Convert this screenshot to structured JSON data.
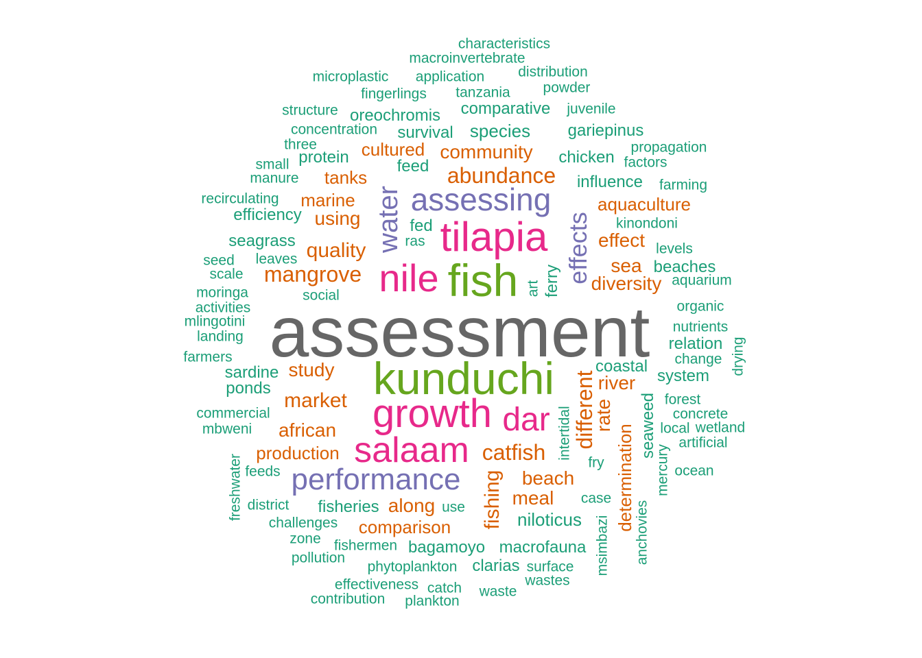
{
  "colors": {
    "teal": "#1b9e77",
    "orange": "#d95f02",
    "purple": "#7570b3",
    "magenta": "#e7298a",
    "green": "#66a61e",
    "gray": "#666666"
  },
  "words": [
    {
      "text": "assessment",
      "color": "#666666"
    },
    {
      "text": "kunduchi",
      "color": "#66a61e"
    },
    {
      "text": "fish",
      "color": "#66a61e"
    },
    {
      "text": "tilapia",
      "color": "#e7298a"
    },
    {
      "text": "nile",
      "color": "#e7298a"
    },
    {
      "text": "growth",
      "color": "#e7298a"
    },
    {
      "text": "salaam",
      "color": "#e7298a"
    },
    {
      "text": "dar",
      "color": "#e7298a"
    },
    {
      "text": "assessing",
      "color": "#7570b3"
    },
    {
      "text": "performance",
      "color": "#7570b3"
    },
    {
      "text": "water",
      "color": "#7570b3"
    },
    {
      "text": "effects",
      "color": "#7570b3"
    },
    {
      "text": "abundance",
      "color": "#d95f02"
    },
    {
      "text": "mangrove",
      "color": "#d95f02"
    },
    {
      "text": "quality",
      "color": "#d95f02"
    },
    {
      "text": "catfish",
      "color": "#d95f02"
    },
    {
      "text": "market",
      "color": "#d95f02"
    },
    {
      "text": "african",
      "color": "#d95f02"
    },
    {
      "text": "beach",
      "color": "#d95f02"
    },
    {
      "text": "community",
      "color": "#d95f02"
    },
    {
      "text": "cultured",
      "color": "#d95f02"
    },
    {
      "text": "using",
      "color": "#d95f02"
    },
    {
      "text": "marine",
      "color": "#d95f02"
    },
    {
      "text": "tanks",
      "color": "#d95f02"
    },
    {
      "text": "aquaculture",
      "color": "#d95f02"
    },
    {
      "text": "effect",
      "color": "#d95f02"
    },
    {
      "text": "sea",
      "color": "#d95f02"
    },
    {
      "text": "diversity",
      "color": "#d95f02"
    },
    {
      "text": "study",
      "color": "#d95f02"
    },
    {
      "text": "river",
      "color": "#d95f02"
    },
    {
      "text": "production",
      "color": "#d95f02"
    },
    {
      "text": "along",
      "color": "#d95f02"
    },
    {
      "text": "meal",
      "color": "#d95f02"
    },
    {
      "text": "comparison",
      "color": "#d95f02"
    },
    {
      "text": "different",
      "color": "#d95f02"
    },
    {
      "text": "rate",
      "color": "#d95f02"
    },
    {
      "text": "fishing",
      "color": "#d95f02"
    },
    {
      "text": "determination",
      "color": "#d95f02"
    },
    {
      "text": "characteristics",
      "color": "#1b9e77"
    },
    {
      "text": "macroinvertebrate",
      "color": "#1b9e77"
    },
    {
      "text": "microplastic",
      "color": "#1b9e77"
    },
    {
      "text": "application",
      "color": "#1b9e77"
    },
    {
      "text": "distribution",
      "color": "#1b9e77"
    },
    {
      "text": "fingerlings",
      "color": "#1b9e77"
    },
    {
      "text": "tanzania",
      "color": "#1b9e77"
    },
    {
      "text": "powder",
      "color": "#1b9e77"
    },
    {
      "text": "structure",
      "color": "#1b9e77"
    },
    {
      "text": "oreochromis",
      "color": "#1b9e77"
    },
    {
      "text": "comparative",
      "color": "#1b9e77"
    },
    {
      "text": "juvenile",
      "color": "#1b9e77"
    },
    {
      "text": "concentration",
      "color": "#1b9e77"
    },
    {
      "text": "survival",
      "color": "#1b9e77"
    },
    {
      "text": "species",
      "color": "#1b9e77"
    },
    {
      "text": "gariepinus",
      "color": "#1b9e77"
    },
    {
      "text": "three",
      "color": "#1b9e77"
    },
    {
      "text": "propagation",
      "color": "#1b9e77"
    },
    {
      "text": "protein",
      "color": "#1b9e77"
    },
    {
      "text": "chicken",
      "color": "#1b9e77"
    },
    {
      "text": "small",
      "color": "#1b9e77"
    },
    {
      "text": "feed",
      "color": "#1b9e77"
    },
    {
      "text": "factors",
      "color": "#1b9e77"
    },
    {
      "text": "manure",
      "color": "#1b9e77"
    },
    {
      "text": "influence",
      "color": "#1b9e77"
    },
    {
      "text": "farming",
      "color": "#1b9e77"
    },
    {
      "text": "recirculating",
      "color": "#1b9e77"
    },
    {
      "text": "efficiency",
      "color": "#1b9e77"
    },
    {
      "text": "fed",
      "color": "#1b9e77"
    },
    {
      "text": "kinondoni",
      "color": "#1b9e77"
    },
    {
      "text": "seagrass",
      "color": "#1b9e77"
    },
    {
      "text": "ras",
      "color": "#1b9e77"
    },
    {
      "text": "levels",
      "color": "#1b9e77"
    },
    {
      "text": "seed",
      "color": "#1b9e77"
    },
    {
      "text": "leaves",
      "color": "#1b9e77"
    },
    {
      "text": "beaches",
      "color": "#1b9e77"
    },
    {
      "text": "scale",
      "color": "#1b9e77"
    },
    {
      "text": "aquarium",
      "color": "#1b9e77"
    },
    {
      "text": "moringa",
      "color": "#1b9e77"
    },
    {
      "text": "social",
      "color": "#1b9e77"
    },
    {
      "text": "activities",
      "color": "#1b9e77"
    },
    {
      "text": "organic",
      "color": "#1b9e77"
    },
    {
      "text": "mlingotini",
      "color": "#1b9e77"
    },
    {
      "text": "nutrients",
      "color": "#1b9e77"
    },
    {
      "text": "landing",
      "color": "#1b9e77"
    },
    {
      "text": "relation",
      "color": "#1b9e77"
    },
    {
      "text": "farmers",
      "color": "#1b9e77"
    },
    {
      "text": "change",
      "color": "#1b9e77"
    },
    {
      "text": "sardine",
      "color": "#1b9e77"
    },
    {
      "text": "coastal",
      "color": "#1b9e77"
    },
    {
      "text": "system",
      "color": "#1b9e77"
    },
    {
      "text": "ponds",
      "color": "#1b9e77"
    },
    {
      "text": "forest",
      "color": "#1b9e77"
    },
    {
      "text": "commercial",
      "color": "#1b9e77"
    },
    {
      "text": "concrete",
      "color": "#1b9e77"
    },
    {
      "text": "mbweni",
      "color": "#1b9e77"
    },
    {
      "text": "local",
      "color": "#1b9e77"
    },
    {
      "text": "wetland",
      "color": "#1b9e77"
    },
    {
      "text": "artificial",
      "color": "#1b9e77"
    },
    {
      "text": "fry",
      "color": "#1b9e77"
    },
    {
      "text": "feeds",
      "color": "#1b9e77"
    },
    {
      "text": "ocean",
      "color": "#1b9e77"
    },
    {
      "text": "case",
      "color": "#1b9e77"
    },
    {
      "text": "district",
      "color": "#1b9e77"
    },
    {
      "text": "fisheries",
      "color": "#1b9e77"
    },
    {
      "text": "use",
      "color": "#1b9e77"
    },
    {
      "text": "challenges",
      "color": "#1b9e77"
    },
    {
      "text": "niloticus",
      "color": "#1b9e77"
    },
    {
      "text": "zone",
      "color": "#1b9e77"
    },
    {
      "text": "fishermen",
      "color": "#1b9e77"
    },
    {
      "text": "bagamoyo",
      "color": "#1b9e77"
    },
    {
      "text": "macrofauna",
      "color": "#1b9e77"
    },
    {
      "text": "pollution",
      "color": "#1b9e77"
    },
    {
      "text": "phytoplankton",
      "color": "#1b9e77"
    },
    {
      "text": "clarias",
      "color": "#1b9e77"
    },
    {
      "text": "surface",
      "color": "#1b9e77"
    },
    {
      "text": "effectiveness",
      "color": "#1b9e77"
    },
    {
      "text": "catch",
      "color": "#1b9e77"
    },
    {
      "text": "wastes",
      "color": "#1b9e77"
    },
    {
      "text": "contribution",
      "color": "#1b9e77"
    },
    {
      "text": "plankton",
      "color": "#1b9e77"
    },
    {
      "text": "waste",
      "color": "#1b9e77"
    },
    {
      "text": "art",
      "color": "#1b9e77"
    },
    {
      "text": "ferry",
      "color": "#1b9e77"
    },
    {
      "text": "drying",
      "color": "#1b9e77"
    },
    {
      "text": "seaweed",
      "color": "#1b9e77"
    },
    {
      "text": "intertidal",
      "color": "#1b9e77"
    },
    {
      "text": "mercury",
      "color": "#1b9e77"
    },
    {
      "text": "freshwater",
      "color": "#1b9e77"
    },
    {
      "text": "msimbazi",
      "color": "#1b9e77"
    },
    {
      "text": "anchovies",
      "color": "#1b9e77"
    }
  ]
}
